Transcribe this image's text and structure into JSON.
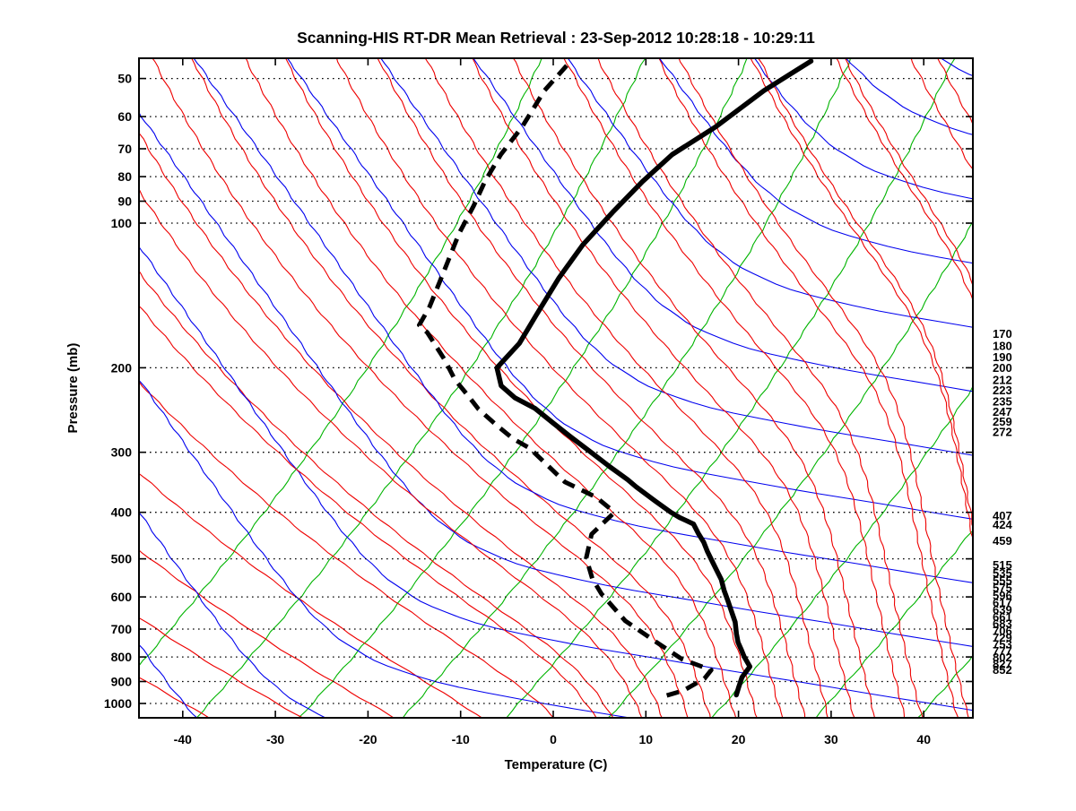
{
  "title": "Scanning-HIS RT-DR Mean Retrieval : 23-Sep-2012 10:28:18 - 10:29:11",
  "axes": {
    "x_label": "Temperature (C)",
    "y_label": "Pressure (mb)",
    "x_ticks": [
      -40,
      -30,
      -20,
      -10,
      0,
      10,
      20,
      30,
      40
    ],
    "y_ticks": [
      50,
      60,
      70,
      80,
      90,
      100,
      200,
      300,
      400,
      500,
      600,
      700,
      800,
      900,
      1000
    ]
  },
  "right_level_labels": {
    "upper": [
      170,
      180,
      190,
      200,
      212,
      223,
      235,
      247,
      259,
      272
    ],
    "middle": [
      407,
      424,
      459
    ],
    "lower": [
      515,
      535,
      555,
      575,
      596,
      617,
      639,
      661,
      683,
      706,
      729,
      753,
      777,
      802,
      827,
      852
    ]
  },
  "colors": {
    "temperature_profile": "#000000",
    "dewpoint_profile": "#000000",
    "adiabat_family_red": "#ee0000",
    "adiabat_family_blue": "#0000ee",
    "isopleth_family_green": "#00b400",
    "isobar_dotted": "#000000",
    "frame": "#000000"
  },
  "chart_data": {
    "type": "line",
    "variant": "skew-t-log-p",
    "title": "Scanning-HIS RT-DR Mean Retrieval : 23-Sep-2012 10:28:18 - 10:29:11",
    "xlabel": "Temperature (C)",
    "ylabel": "Pressure (mb)",
    "x_range_c": [
      -45,
      45
    ],
    "p_range_mb": [
      45,
      1080
    ],
    "grid": "dotted horizontal isobars at labeled pressure ticks; skewed isotherm geometry (45 deg)",
    "legend_position": "none",
    "series": [
      {
        "name": "temperature",
        "style": "solid thick black",
        "units": [
          "mb",
          "C"
        ],
        "points": [
          [
            46,
            -43.1
          ],
          [
            53,
            -45.0
          ],
          [
            63,
            -46.3
          ],
          [
            72,
            -48.0
          ],
          [
            82,
            -48.3
          ],
          [
            95,
            -48.2
          ],
          [
            111,
            -47.9
          ],
          [
            130,
            -46.9
          ],
          [
            156,
            -45.3
          ],
          [
            178,
            -44.1
          ],
          [
            200,
            -43.9
          ],
          [
            218,
            -41.5
          ],
          [
            231,
            -38.7
          ],
          [
            243,
            -35.4
          ],
          [
            261,
            -31.8
          ],
          [
            280,
            -28.2
          ],
          [
            300,
            -24.6
          ],
          [
            321,
            -21.1
          ],
          [
            342,
            -17.7
          ],
          [
            354,
            -16.0
          ],
          [
            379,
            -12.4
          ],
          [
            400,
            -9.5
          ],
          [
            410,
            -8.0
          ],
          [
            423,
            -5.8
          ],
          [
            442,
            -4.3
          ],
          [
            462,
            -2.7
          ],
          [
            483,
            -1.3
          ],
          [
            505,
            0.2
          ],
          [
            528,
            1.7
          ],
          [
            552,
            3.2
          ],
          [
            582,
            4.7
          ],
          [
            613,
            6.3
          ],
          [
            640,
            7.6
          ],
          [
            677,
            9.3
          ],
          [
            716,
            10.7
          ],
          [
            746,
            11.8
          ],
          [
            774,
            13.0
          ],
          [
            799,
            14.0
          ],
          [
            838,
            15.7
          ],
          [
            882,
            16.0
          ],
          [
            924,
            16.7
          ],
          [
            960,
            17.3
          ]
        ]
      },
      {
        "name": "dew_point",
        "style": "dashed thick black",
        "units": [
          "mb",
          "C"
        ],
        "points": [
          [
            47,
            -69.0
          ],
          [
            53,
            -68.7
          ],
          [
            63,
            -67.2
          ],
          [
            72,
            -66.5
          ],
          [
            82,
            -65.3
          ],
          [
            92,
            -63.9
          ],
          [
            105,
            -62.5
          ],
          [
            119,
            -60.8
          ],
          [
            133,
            -59.3
          ],
          [
            150,
            -57.7
          ],
          [
            163,
            -56.9
          ],
          [
            169,
            -55.2
          ],
          [
            192,
            -50.5
          ],
          [
            212,
            -47.1
          ],
          [
            227,
            -44.3
          ],
          [
            244,
            -41.4
          ],
          [
            262,
            -38.0
          ],
          [
            281,
            -34.5
          ],
          [
            294,
            -31.7
          ],
          [
            346,
            -24.2
          ],
          [
            372,
            -19.2
          ],
          [
            395,
            -16.2
          ],
          [
            402,
            -15.6
          ],
          [
            444,
            -15.7
          ],
          [
            498,
            -13.7
          ],
          [
            550,
            -10.8
          ],
          [
            591,
            -8.2
          ],
          [
            673,
            -2.7
          ],
          [
            742,
            2.7
          ],
          [
            809,
            7.6
          ],
          [
            852,
            11.9
          ],
          [
            888,
            12.1
          ],
          [
            940,
            11.1
          ],
          [
            965,
            9.7
          ]
        ]
      }
    ],
    "background_isopleths": [
      {
        "name": "adiabat-family-red",
        "color": "#ee0000",
        "appearance": "curved, near-vertical at warm bottom-right, pairs with blue when cold"
      },
      {
        "name": "adiabat-family-blue",
        "color": "#0000ee",
        "appearance": "flattens toward warm lower-right, pairs with red when cold"
      },
      {
        "name": "isopleth-family-green",
        "color": "#00b400",
        "appearance": "steep up-right lines spaced ~11 C at bottom"
      }
    ],
    "isobars_mb": [
      50,
      60,
      70,
      80,
      90,
      100,
      200,
      300,
      400,
      500,
      600,
      700,
      800,
      900,
      1000
    ],
    "right_edge_level_labels_mb": [
      170,
      180,
      190,
      200,
      212,
      223,
      235,
      247,
      259,
      272,
      407,
      424,
      459,
      515,
      535,
      555,
      575,
      596,
      617,
      639,
      661,
      683,
      706,
      729,
      753,
      777,
      802,
      827,
      852
    ]
  }
}
